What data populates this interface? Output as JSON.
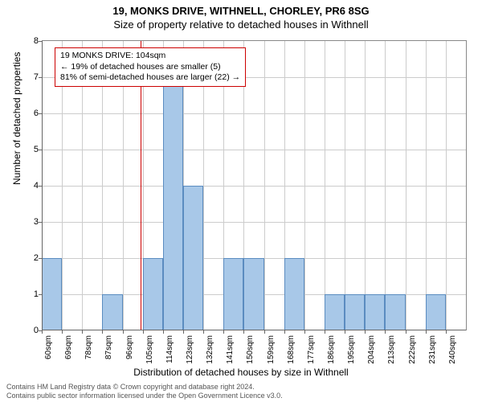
{
  "title1": "19, MONKS DRIVE, WITHNELL, CHORLEY, PR6 8SG",
  "title2": "Size of property relative to detached houses in Withnell",
  "ylabel": "Number of detached properties",
  "xlabel": "Distribution of detached houses by size in Withnell",
  "chart": {
    "type": "bar",
    "x_start": 60,
    "x_step": 9,
    "x_count": 21,
    "x_unit": "sqm",
    "values": [
      2,
      0,
      0,
      1,
      0,
      2,
      7,
      4,
      0,
      2,
      2,
      0,
      2,
      0,
      1,
      1,
      1,
      1,
      0,
      1,
      0
    ],
    "bar_color": "#a8c8e8",
    "bar_border": "#5b8cc0",
    "ylim": [
      0,
      8
    ],
    "ytick_step": 1,
    "grid_color": "#cccccc",
    "background": "#ffffff",
    "marker_x": 104,
    "marker_color": "#cc0000",
    "bar_width_ratio": 1.0
  },
  "info_box": {
    "line1": "19 MONKS DRIVE: 104sqm",
    "line2": "← 19% of detached houses are smaller (5)",
    "line3": "81% of semi-detached houses are larger (22) →",
    "border_color": "#cc0000"
  },
  "footer": {
    "line1": "Contains HM Land Registry data © Crown copyright and database right 2024.",
    "line2": "Contains public sector information licensed under the Open Government Licence v3.0."
  }
}
